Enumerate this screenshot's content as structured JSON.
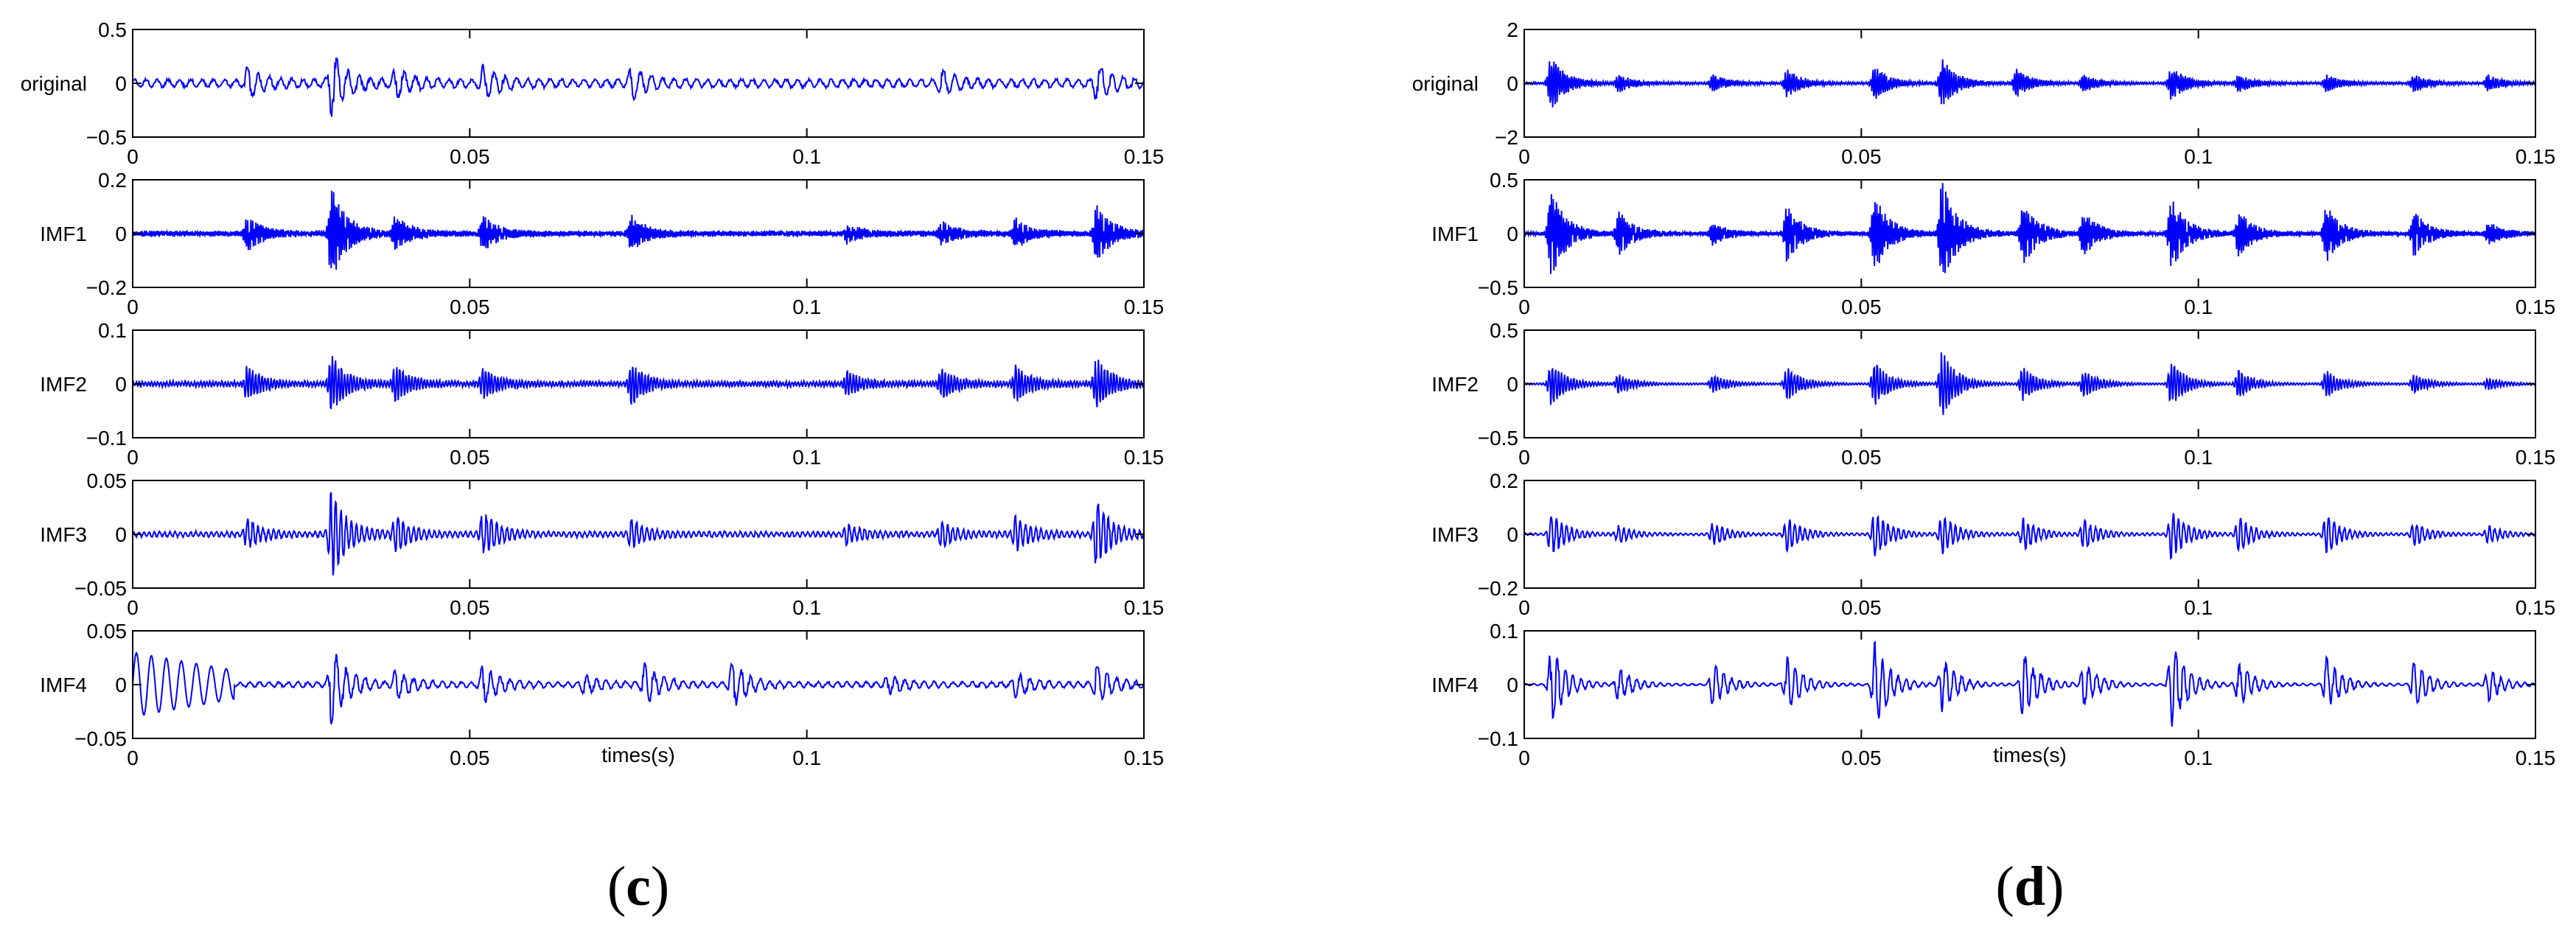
{
  "chart_data": [
    {
      "type": "line",
      "panel_label": "c",
      "xlabel": "times(s)",
      "xlim": [
        0,
        0.15
      ],
      "xticks": [
        "0",
        "0.05",
        "0.1",
        "0.15"
      ],
      "line_color": "#0000ff",
      "grid": false,
      "subplots": [
        {
          "name": "original",
          "ylim": [
            -0.5,
            0.5
          ],
          "yticks": [
            "0.5",
            "0",
            "−0.5"
          ],
          "base_amp": 0.045,
          "carrier_hz": 600,
          "bursts": [
            {
              "t": 0.017,
              "a": 0.12
            },
            {
              "t": 0.0295,
              "a": 0.28
            },
            {
              "t": 0.039,
              "a": 0.12
            },
            {
              "t": 0.052,
              "a": 0.14
            },
            {
              "t": 0.074,
              "a": 0.13
            },
            {
              "t": 0.12,
              "a": 0.1
            },
            {
              "t": 0.143,
              "a": 0.14
            }
          ]
        },
        {
          "name": "IMF1",
          "ylim": [
            -0.2,
            0.2
          ],
          "yticks": [
            "0.2",
            "0",
            "−0.2"
          ],
          "base_amp": 0.012,
          "carrier_hz": 4000,
          "bursts": [
            {
              "t": 0.017,
              "a": 0.06
            },
            {
              "t": 0.0295,
              "a": 0.17
            },
            {
              "t": 0.039,
              "a": 0.06
            },
            {
              "t": 0.052,
              "a": 0.06
            },
            {
              "t": 0.074,
              "a": 0.06
            },
            {
              "t": 0.106,
              "a": 0.03
            },
            {
              "t": 0.12,
              "a": 0.04
            },
            {
              "t": 0.131,
              "a": 0.05
            },
            {
              "t": 0.143,
              "a": 0.1
            }
          ]
        },
        {
          "name": "IMF2",
          "ylim": [
            -0.1,
            0.1
          ],
          "yticks": [
            "0.1",
            "0",
            "−0.1"
          ],
          "base_amp": 0.006,
          "carrier_hz": 2200,
          "bursts": [
            {
              "t": 0.017,
              "a": 0.03
            },
            {
              "t": 0.0295,
              "a": 0.05
            },
            {
              "t": 0.039,
              "a": 0.03
            },
            {
              "t": 0.052,
              "a": 0.025
            },
            {
              "t": 0.074,
              "a": 0.035
            },
            {
              "t": 0.106,
              "a": 0.02
            },
            {
              "t": 0.12,
              "a": 0.025
            },
            {
              "t": 0.131,
              "a": 0.03
            },
            {
              "t": 0.143,
              "a": 0.045
            }
          ]
        },
        {
          "name": "IMF3",
          "ylim": [
            -0.05,
            0.05
          ],
          "yticks": [
            "0.05",
            "0",
            "−0.05"
          ],
          "base_amp": 0.003,
          "carrier_hz": 1300,
          "bursts": [
            {
              "t": 0.017,
              "a": 0.012
            },
            {
              "t": 0.0295,
              "a": 0.04
            },
            {
              "t": 0.039,
              "a": 0.015
            },
            {
              "t": 0.052,
              "a": 0.02
            },
            {
              "t": 0.074,
              "a": 0.012
            },
            {
              "t": 0.106,
              "a": 0.008
            },
            {
              "t": 0.12,
              "a": 0.01
            },
            {
              "t": 0.131,
              "a": 0.015
            },
            {
              "t": 0.143,
              "a": 0.03
            }
          ]
        },
        {
          "name": "IMF4",
          "ylim": [
            -0.05,
            0.05
          ],
          "yticks": [
            "0.05",
            "0",
            "−0.05"
          ],
          "base_amp": 0.003,
          "carrier_hz": 700,
          "bursts": [
            {
              "t": 0.0295,
              "a": 0.035
            },
            {
              "t": 0.039,
              "a": 0.012
            },
            {
              "t": 0.052,
              "a": 0.018
            },
            {
              "t": 0.067,
              "a": 0.008
            },
            {
              "t": 0.076,
              "a": 0.018
            },
            {
              "t": 0.089,
              "a": 0.022
            },
            {
              "t": 0.112,
              "a": 0.008
            },
            {
              "t": 0.131,
              "a": 0.01
            },
            {
              "t": 0.143,
              "a": 0.016
            }
          ],
          "lowfreq": {
            "t0": 0,
            "t1": 0.015,
            "a": 0.03,
            "hz": 450
          }
        }
      ]
    },
    {
      "type": "line",
      "panel_label": "d",
      "xlabel": "times(s)",
      "xlim": [
        0,
        0.15
      ],
      "xticks": [
        "0",
        "0.05",
        "0.1",
        "0.15"
      ],
      "line_color": "#0000ff",
      "grid": false,
      "subplots": [
        {
          "name": "original",
          "ylim": [
            -2,
            2
          ],
          "yticks": [
            "2",
            "0",
            "−2"
          ],
          "base_amp": 0.05,
          "carrier_hz": 3000,
          "bursts": [
            {
              "t": 0.004,
              "a": 1.0
            },
            {
              "t": 0.014,
              "a": 0.3
            },
            {
              "t": 0.028,
              "a": 0.3
            },
            {
              "t": 0.039,
              "a": 0.5
            },
            {
              "t": 0.052,
              "a": 0.6
            },
            {
              "t": 0.062,
              "a": 0.9
            },
            {
              "t": 0.073,
              "a": 0.5
            },
            {
              "t": 0.083,
              "a": 0.3
            },
            {
              "t": 0.096,
              "a": 0.6
            },
            {
              "t": 0.106,
              "a": 0.3
            },
            {
              "t": 0.119,
              "a": 0.3
            },
            {
              "t": 0.132,
              "a": 0.3
            },
            {
              "t": 0.143,
              "a": 0.3
            }
          ]
        },
        {
          "name": "IMF1",
          "ylim": [
            -0.5,
            0.5
          ],
          "yticks": [
            "0.5",
            "0",
            "−0.5"
          ],
          "base_amp": 0.02,
          "carrier_hz": 4000,
          "bursts": [
            {
              "t": 0.004,
              "a": 0.4
            },
            {
              "t": 0.014,
              "a": 0.2
            },
            {
              "t": 0.028,
              "a": 0.1
            },
            {
              "t": 0.039,
              "a": 0.25
            },
            {
              "t": 0.052,
              "a": 0.35
            },
            {
              "t": 0.062,
              "a": 0.48
            },
            {
              "t": 0.074,
              "a": 0.3
            },
            {
              "t": 0.083,
              "a": 0.2
            },
            {
              "t": 0.096,
              "a": 0.33
            },
            {
              "t": 0.106,
              "a": 0.2
            },
            {
              "t": 0.119,
              "a": 0.25
            },
            {
              "t": 0.132,
              "a": 0.2
            },
            {
              "t": 0.143,
              "a": 0.1
            }
          ]
        },
        {
          "name": "IMF2",
          "ylim": [
            -0.5,
            0.5
          ],
          "yticks": [
            "0.5",
            "0",
            "−0.5"
          ],
          "base_amp": 0.01,
          "carrier_hz": 2200,
          "bursts": [
            {
              "t": 0.004,
              "a": 0.2
            },
            {
              "t": 0.014,
              "a": 0.08
            },
            {
              "t": 0.028,
              "a": 0.08
            },
            {
              "t": 0.039,
              "a": 0.15
            },
            {
              "t": 0.052,
              "a": 0.2
            },
            {
              "t": 0.062,
              "a": 0.3
            },
            {
              "t": 0.074,
              "a": 0.15
            },
            {
              "t": 0.083,
              "a": 0.12
            },
            {
              "t": 0.096,
              "a": 0.2
            },
            {
              "t": 0.106,
              "a": 0.12
            },
            {
              "t": 0.119,
              "a": 0.12
            },
            {
              "t": 0.132,
              "a": 0.08
            },
            {
              "t": 0.143,
              "a": 0.05
            }
          ]
        },
        {
          "name": "IMF3",
          "ylim": [
            -0.2,
            0.2
          ],
          "yticks": [
            "0.2",
            "0",
            "−0.2"
          ],
          "base_amp": 0.005,
          "carrier_hz": 1300,
          "bursts": [
            {
              "t": 0.004,
              "a": 0.08
            },
            {
              "t": 0.014,
              "a": 0.03
            },
            {
              "t": 0.028,
              "a": 0.04
            },
            {
              "t": 0.039,
              "a": 0.06
            },
            {
              "t": 0.052,
              "a": 0.08
            },
            {
              "t": 0.062,
              "a": 0.07
            },
            {
              "t": 0.074,
              "a": 0.06
            },
            {
              "t": 0.083,
              "a": 0.05
            },
            {
              "t": 0.096,
              "a": 0.09
            },
            {
              "t": 0.106,
              "a": 0.06
            },
            {
              "t": 0.119,
              "a": 0.07
            },
            {
              "t": 0.132,
              "a": 0.04
            },
            {
              "t": 0.143,
              "a": 0.03
            }
          ]
        },
        {
          "name": "IMF4",
          "ylim": [
            -0.1,
            0.1
          ],
          "yticks": [
            "0.1",
            "0",
            "−0.1"
          ],
          "base_amp": 0.002,
          "carrier_hz": 850,
          "bursts": [
            {
              "t": 0.004,
              "a": 0.07
            },
            {
              "t": 0.014,
              "a": 0.03
            },
            {
              "t": 0.028,
              "a": 0.04
            },
            {
              "t": 0.039,
              "a": 0.05
            },
            {
              "t": 0.052,
              "a": 0.08
            },
            {
              "t": 0.062,
              "a": 0.05
            },
            {
              "t": 0.074,
              "a": 0.06
            },
            {
              "t": 0.083,
              "a": 0.04
            },
            {
              "t": 0.096,
              "a": 0.08
            },
            {
              "t": 0.106,
              "a": 0.04
            },
            {
              "t": 0.119,
              "a": 0.05
            },
            {
              "t": 0.132,
              "a": 0.04
            },
            {
              "t": 0.143,
              "a": 0.03
            }
          ]
        }
      ]
    }
  ]
}
